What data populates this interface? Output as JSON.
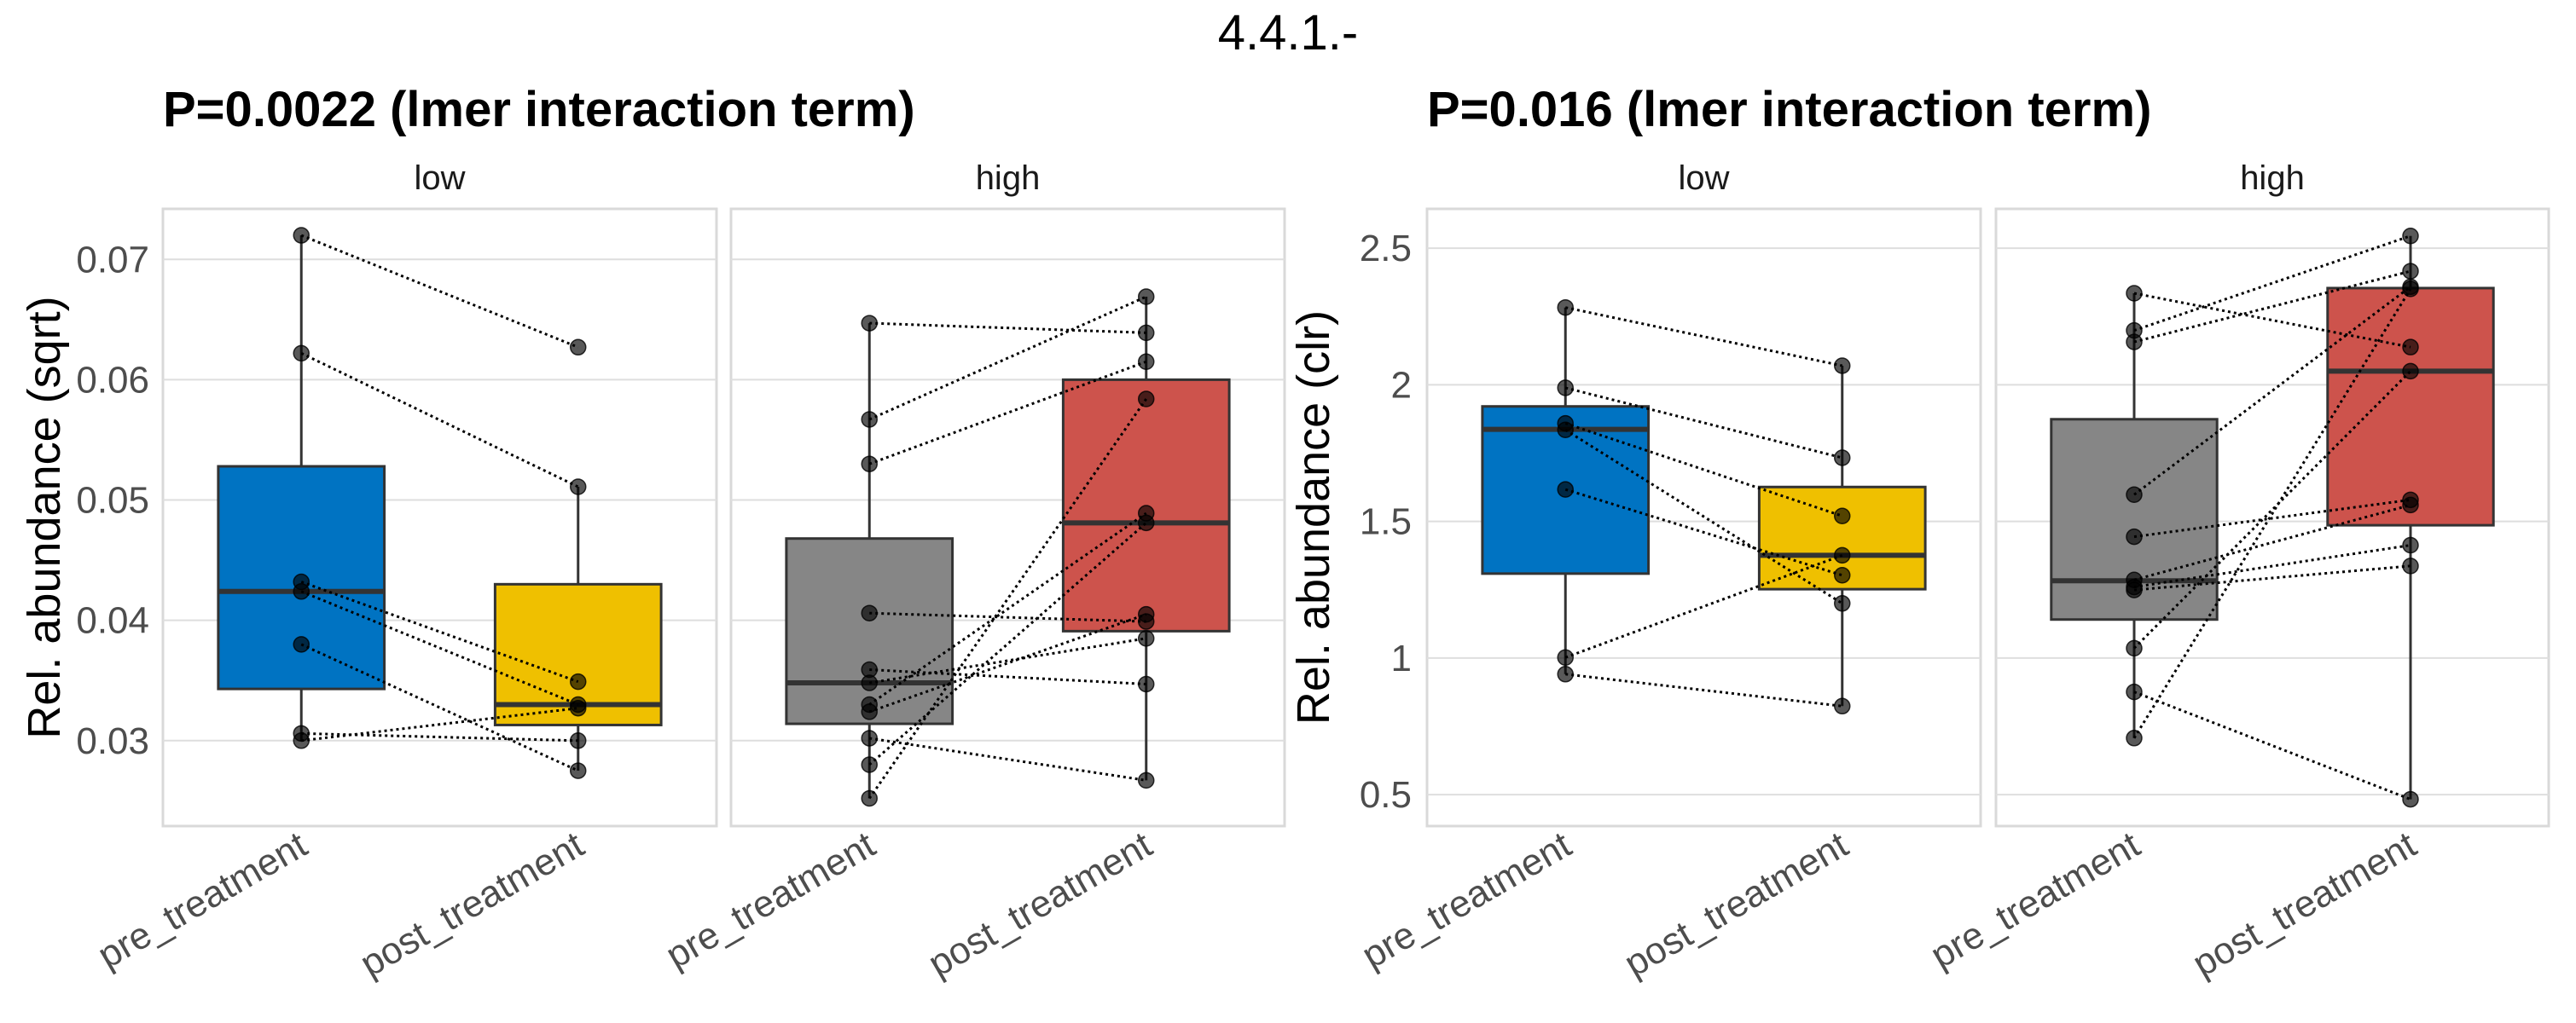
{
  "title": "4.4.1.-",
  "chart_data": [
    {
      "type": "boxplot",
      "title": "P=0.0022 (lmer interaction term)",
      "ylabel": "Rel. abundance (sqrt)",
      "xlabel": "",
      "ylim": [
        0.0229,
        0.0742
      ],
      "yticks": [
        0.03,
        0.04,
        0.05,
        0.06,
        0.07
      ],
      "ytick_labels": [
        "0.03",
        "0.04",
        "0.05",
        "0.06",
        "0.07"
      ],
      "grid": true,
      "facets": [
        {
          "label": "low",
          "categories": [
            "pre_treatment",
            "post_treatment"
          ],
          "boxes": [
            {
              "name": "pre_treatment",
              "color": "#0073C2",
              "q1": 0.0343,
              "median": 0.0424,
              "q3": 0.0528,
              "whisker_low": 0.03,
              "whisker_high": 0.072,
              "points": [
                0.072,
                0.0622,
                0.0432,
                0.0424,
                0.038,
                0.0306,
                0.03
              ]
            },
            {
              "name": "post_treatment",
              "color": "#EFC000",
              "q1": 0.0313,
              "median": 0.033,
              "q3": 0.043,
              "whisker_low": 0.0275,
              "whisker_high": 0.0511,
              "points": [
                0.0627,
                0.0511,
                0.0349,
                0.033,
                0.0275,
                0.03,
                0.0327
              ]
            }
          ]
        },
        {
          "label": "high",
          "categories": [
            "pre_treatment",
            "post_treatment"
          ],
          "boxes": [
            {
              "name": "pre_treatment",
              "color": "#868686",
              "q1": 0.0314,
              "median": 0.0348,
              "q3": 0.0468,
              "whisker_low": 0.0252,
              "whisker_high": 0.0647,
              "points": [
                0.0647,
                0.0567,
                0.053,
                0.0406,
                0.0359,
                0.0348,
                0.033,
                0.0324,
                0.0302,
                0.028,
                0.0252
              ]
            },
            {
              "name": "post_treatment",
              "color": "#CD534C",
              "q1": 0.0391,
              "median": 0.0481,
              "q3": 0.06,
              "whisker_low": 0.0267,
              "whisker_high": 0.0669,
              "points": [
                0.0639,
                0.0669,
                0.0615,
                0.0399,
                0.0347,
                0.0385,
                0.0489,
                0.0405,
                0.0267,
                0.0481,
                0.0584
              ]
            }
          ]
        }
      ]
    },
    {
      "type": "boxplot",
      "title": "P=0.016 (lmer interaction term)",
      "ylabel": "Rel. abundance (clr)",
      "xlabel": "",
      "ylim": [
        0.385,
        2.644
      ],
      "yticks": [
        0.5,
        1,
        1.5,
        2,
        2.5
      ],
      "ytick_labels": [
        "0.5",
        "1",
        "1.5",
        "2",
        "2.5"
      ],
      "grid": true,
      "facets": [
        {
          "label": "low",
          "categories": [
            "pre_treatment",
            "post_treatment"
          ],
          "boxes": [
            {
              "name": "pre_treatment",
              "color": "#0073C2",
              "q1": 1.309,
              "median": 1.837,
              "q3": 1.921,
              "whisker_low": 0.941,
              "whisker_high": 2.283,
              "points": [
                2.283,
                1.989,
                1.859,
                1.835,
                1.617,
                1.002,
                0.941
              ]
            },
            {
              "name": "post_treatment",
              "color": "#EFC000",
              "q1": 1.252,
              "median": 1.376,
              "q3": 1.626,
              "whisker_low": 0.824,
              "whisker_high": 2.07,
              "points": [
                2.07,
                1.733,
                1.52,
                1.2,
                1.303,
                1.376,
                0.824
              ]
            }
          ]
        },
        {
          "label": "high",
          "categories": [
            "pre_treatment",
            "post_treatment"
          ],
          "boxes": [
            {
              "name": "pre_treatment",
              "color": "#868686",
              "q1": 1.141,
              "median": 1.283,
              "q3": 1.874,
              "whisker_low": 0.707,
              "whisker_high": 2.335,
              "points": [
                2.335,
                2.199,
                2.157,
                1.598,
                1.444,
                1.286,
                1.26,
                1.249,
                1.036,
                0.876,
                0.707
              ]
            },
            {
              "name": "post_treatment",
              "color": "#CD534C",
              "q1": 1.486,
              "median": 2.05,
              "q3": 2.354,
              "whisker_low": 0.483,
              "whisker_high": 2.545,
              "points": [
                2.138,
                2.545,
                2.416,
                2.359,
                1.579,
                1.56,
                1.413,
                1.337,
                2.05,
                0.483,
                2.351
              ]
            }
          ]
        }
      ]
    }
  ]
}
